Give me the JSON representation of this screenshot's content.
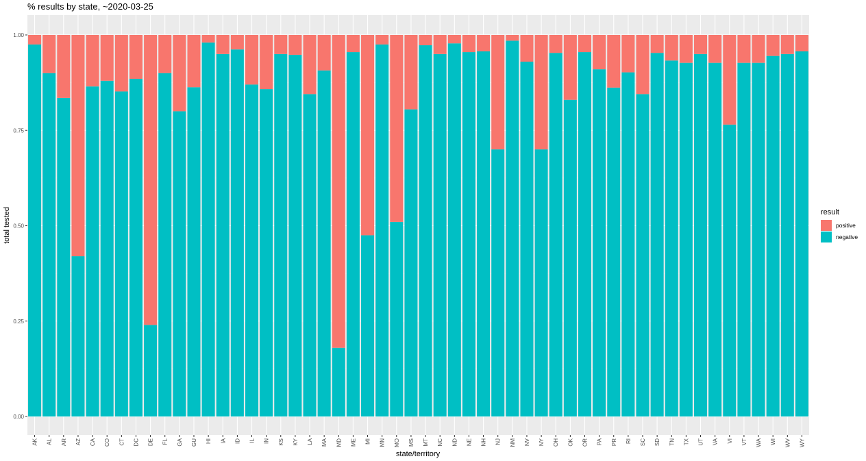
{
  "chart_data": {
    "type": "bar",
    "stacked": true,
    "title": "% results by state, ~2020-03-25",
    "xlabel": "state/territory",
    "ylabel": "total tested",
    "ylim": [
      0,
      1
    ],
    "yticks": [
      0.0,
      0.25,
      0.5,
      0.75,
      1.0
    ],
    "ytick_labels": [
      "0.00",
      "0.25",
      "0.50",
      "0.75",
      "1.00"
    ],
    "grid": true,
    "legend": {
      "title": "result",
      "placement": "right"
    },
    "categories": [
      "AK",
      "AL",
      "AR",
      "AZ",
      "CA",
      "CO",
      "CT",
      "DC",
      "DE",
      "FL",
      "GA",
      "GU",
      "HI",
      "IA",
      "ID",
      "IL",
      "IN",
      "KS",
      "KY",
      "LA",
      "MA",
      "MD",
      "ME",
      "MI",
      "MN",
      "MO",
      "MS",
      "MT",
      "NC",
      "ND",
      "NE",
      "NH",
      "NJ",
      "NM",
      "NV",
      "NY",
      "OH",
      "OK",
      "OR",
      "PA",
      "PR",
      "RI",
      "SC",
      "SD",
      "TN",
      "TX",
      "UT",
      "VA",
      "VI",
      "VT",
      "WA",
      "WI",
      "WV",
      "WY"
    ],
    "series": [
      {
        "name": "positive",
        "color": "#F8766D",
        "values": [
          0.025,
          0.1,
          0.165,
          0.58,
          0.135,
          0.12,
          0.148,
          0.115,
          0.76,
          0.1,
          0.2,
          0.137,
          0.02,
          0.05,
          0.038,
          0.13,
          0.142,
          0.05,
          0.052,
          0.155,
          0.093,
          0.82,
          0.045,
          0.525,
          0.025,
          0.49,
          0.195,
          0.027,
          0.05,
          0.022,
          0.045,
          0.043,
          0.3,
          0.015,
          0.07,
          0.3,
          0.047,
          0.17,
          0.045,
          0.09,
          0.138,
          0.098,
          0.155,
          0.047,
          0.067,
          0.073,
          0.05,
          0.073,
          0.235,
          0.073,
          0.073,
          0.055,
          0.05,
          0.043
        ]
      },
      {
        "name": "negative",
        "color": "#00BFC4",
        "values": [
          0.975,
          0.9,
          0.835,
          0.42,
          0.865,
          0.88,
          0.852,
          0.885,
          0.24,
          0.9,
          0.8,
          0.863,
          0.98,
          0.95,
          0.962,
          0.87,
          0.858,
          0.95,
          0.948,
          0.845,
          0.907,
          0.18,
          0.955,
          0.475,
          0.975,
          0.51,
          0.805,
          0.973,
          0.95,
          0.978,
          0.955,
          0.957,
          0.7,
          0.985,
          0.93,
          0.7,
          0.953,
          0.83,
          0.955,
          0.91,
          0.862,
          0.902,
          0.845,
          0.953,
          0.933,
          0.927,
          0.95,
          0.927,
          0.765,
          0.927,
          0.927,
          0.945,
          0.95,
          0.957
        ]
      }
    ]
  }
}
